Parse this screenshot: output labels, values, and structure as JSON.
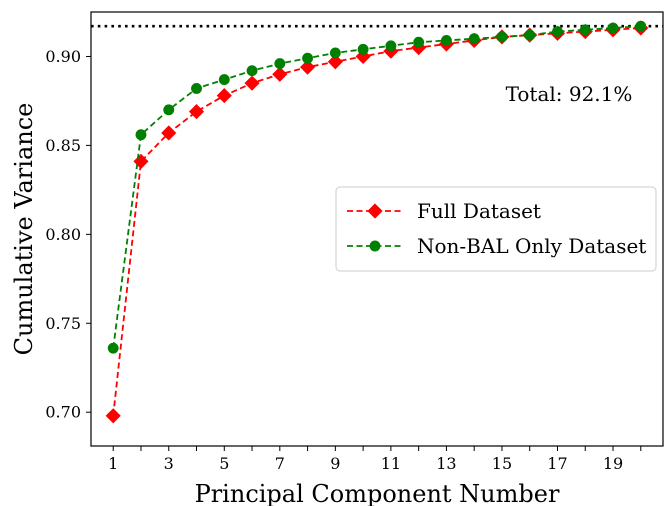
{
  "chart_data": {
    "type": "line",
    "title": "",
    "xlabel": "Principal Component Number",
    "ylabel": "Cumulative Variance",
    "x": [
      1,
      2,
      3,
      4,
      5,
      6,
      7,
      8,
      9,
      10,
      11,
      12,
      13,
      14,
      15,
      16,
      17,
      18,
      19,
      20
    ],
    "xticks": [
      "1",
      "3",
      "5",
      "7",
      "9",
      "11",
      "13",
      "15",
      "17",
      "19"
    ],
    "yticks": [
      "0.70",
      "0.75",
      "0.80",
      "0.85",
      "0.90"
    ],
    "xlim": [
      0.2,
      20.8
    ],
    "ylim": [
      0.681,
      0.925
    ],
    "grid": false,
    "legend_position": "center-right",
    "series": [
      {
        "name": "Full Dataset",
        "color": "#ff0000",
        "marker": "diamond",
        "line_style": "dashed",
        "values": [
          0.698,
          0.841,
          0.857,
          0.869,
          0.878,
          0.885,
          0.89,
          0.894,
          0.897,
          0.9,
          0.903,
          0.905,
          0.907,
          0.909,
          0.911,
          0.912,
          0.913,
          0.914,
          0.915,
          0.916
        ]
      },
      {
        "name": "Non-BAL Only Dataset",
        "color": "#008000",
        "marker": "circle",
        "line_style": "dashed",
        "values": [
          0.736,
          0.856,
          0.87,
          0.882,
          0.887,
          0.892,
          0.896,
          0.899,
          0.902,
          0.904,
          0.906,
          0.908,
          0.909,
          0.91,
          0.911,
          0.912,
          0.914,
          0.915,
          0.916,
          0.917
        ]
      }
    ],
    "reference_line": {
      "y": 0.917,
      "style": "dotted",
      "color": "#000000"
    },
    "annotation": {
      "text": "Total: 92.1%"
    }
  }
}
